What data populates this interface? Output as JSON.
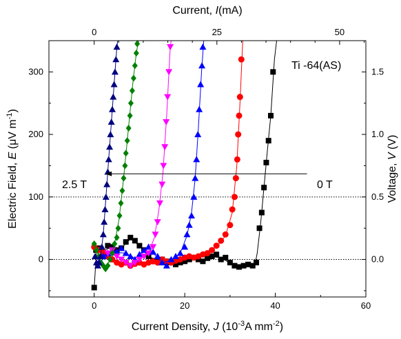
{
  "chart_data": {
    "type": "scatter",
    "title": "",
    "xlabel_bottom": {
      "prefix": "Current Density, ",
      "sym": "J",
      "mid": " (10",
      "sup1": "-3",
      "mid2": "A mm",
      "sup2": "-2",
      "end": ")"
    },
    "xlabel_top": {
      "prefix": "Current, ",
      "sym": "I",
      "end": "(mA)"
    },
    "ylabel_left": {
      "prefix": "Electric Field, ",
      "sym": "E",
      "mid": " (μV m",
      "sup": "-1",
      "end": ")"
    },
    "ylabel_right": {
      "prefix": "Voltage, ",
      "sym": "V",
      "end": " (V)"
    },
    "xlim": [
      -10,
      60
    ],
    "ylim": [
      -60,
      350
    ],
    "xticks": [
      "0",
      "20",
      "40",
      "60"
    ],
    "yticks": [
      "0",
      "100",
      "200",
      "300"
    ],
    "top_ticks": [
      "0",
      "25",
      "50"
    ],
    "right_ticks": [
      "0.0",
      "0.5",
      "1.0",
      "1.5"
    ],
    "sample_label": "Ti -64(AS)",
    "field_low_label": "0 T",
    "field_high_label": "2.5 T",
    "arrow": {
      "from": [
        47,
        137
      ],
      "to": [
        2.5,
        137
      ]
    },
    "reference_lines": [
      0,
      100
    ],
    "series": [
      {
        "marker": "square",
        "color": "#000000",
        "points": [
          [
            0,
            -45
          ],
          [
            0.4,
            15
          ],
          [
            1,
            18
          ],
          [
            2,
            10
          ],
          [
            3,
            22
          ],
          [
            4,
            20
          ],
          [
            5,
            15
          ],
          [
            6,
            18
          ],
          [
            7,
            28
          ],
          [
            8,
            35
          ],
          [
            9,
            30
          ],
          [
            10,
            22
          ],
          [
            11,
            15
          ],
          [
            12,
            5
          ],
          [
            13,
            -2
          ],
          [
            14,
            -3
          ],
          [
            15,
            0
          ],
          [
            16,
            -5
          ],
          [
            17,
            -3
          ],
          [
            18,
            -8
          ],
          [
            19,
            -5
          ],
          [
            20,
            -3
          ],
          [
            21,
            0
          ],
          [
            22,
            3
          ],
          [
            23,
            0
          ],
          [
            24,
            -3
          ],
          [
            25,
            2
          ],
          [
            26,
            5
          ],
          [
            27,
            8
          ],
          [
            28,
            0
          ],
          [
            29,
            3
          ],
          [
            30,
            -5
          ],
          [
            31,
            -10
          ],
          [
            32,
            -12
          ],
          [
            33,
            -10
          ],
          [
            34,
            -8
          ],
          [
            35,
            -10
          ],
          [
            35.8,
            -5
          ],
          [
            36.5,
            50
          ],
          [
            37,
            75
          ],
          [
            37.5,
            115
          ],
          [
            38,
            155
          ],
          [
            38.5,
            190
          ],
          [
            39,
            230
          ],
          [
            39.5,
            300
          ]
        ],
        "curve": [
          [
            0,
            -45
          ],
          [
            0.5,
            12
          ],
          [
            2,
            14
          ],
          [
            4,
            20
          ],
          [
            6,
            18
          ],
          [
            8,
            33
          ],
          [
            10,
            22
          ],
          [
            12,
            5
          ],
          [
            14,
            -2
          ],
          [
            16,
            -4
          ],
          [
            18,
            -6
          ],
          [
            20,
            -3
          ],
          [
            22,
            2
          ],
          [
            24,
            -1
          ],
          [
            26,
            4
          ],
          [
            28,
            3
          ],
          [
            30,
            -6
          ],
          [
            32,
            -12
          ],
          [
            34,
            -9
          ],
          [
            35.5,
            -8
          ],
          [
            36,
            10
          ],
          [
            36.8,
            60
          ],
          [
            37.5,
            115
          ],
          [
            38.2,
            170
          ],
          [
            39,
            230
          ],
          [
            39.8,
            320
          ],
          [
            40.3,
            350
          ]
        ]
      },
      {
        "marker": "circle",
        "color": "#ff0000",
        "points": [
          [
            0,
            20
          ],
          [
            1,
            15
          ],
          [
            2,
            12
          ],
          [
            3,
            5
          ],
          [
            4,
            0
          ],
          [
            5,
            -5
          ],
          [
            6,
            -8
          ],
          [
            7,
            -5
          ],
          [
            8,
            -10
          ],
          [
            9,
            -7
          ],
          [
            10,
            -5
          ],
          [
            11,
            -8
          ],
          [
            12,
            -5
          ],
          [
            13,
            -3
          ],
          [
            14,
            -5
          ],
          [
            15,
            0
          ],
          [
            16,
            -3
          ],
          [
            17,
            -5
          ],
          [
            18,
            -2
          ],
          [
            19,
            0
          ],
          [
            20,
            3
          ],
          [
            21,
            5
          ],
          [
            22,
            3
          ],
          [
            23,
            5
          ],
          [
            24,
            8
          ],
          [
            25,
            10
          ],
          [
            26,
            15
          ],
          [
            27,
            22
          ],
          [
            28,
            30
          ],
          [
            29,
            40
          ],
          [
            30,
            55
          ],
          [
            30.5,
            80
          ],
          [
            31,
            100
          ],
          [
            31.3,
            130
          ],
          [
            31.6,
            160
          ],
          [
            31.8,
            200
          ],
          [
            32,
            230
          ],
          [
            32.2,
            260
          ],
          [
            32.5,
            320
          ]
        ],
        "curve": [
          [
            0,
            20
          ],
          [
            4,
            0
          ],
          [
            8,
            -8
          ],
          [
            12,
            -6
          ],
          [
            16,
            -2
          ],
          [
            20,
            2
          ],
          [
            24,
            8
          ],
          [
            27,
            20
          ],
          [
            29,
            38
          ],
          [
            30.5,
            75
          ],
          [
            31.5,
            150
          ],
          [
            32.2,
            250
          ],
          [
            32.8,
            350
          ]
        ]
      },
      {
        "marker": "triangle-up",
        "color": "#0000ff",
        "points": [
          [
            1,
            -5
          ],
          [
            2,
            5
          ],
          [
            3,
            10
          ],
          [
            4,
            15
          ],
          [
            5,
            12
          ],
          [
            6,
            18
          ],
          [
            7,
            10
          ],
          [
            8,
            5
          ],
          [
            9,
            0
          ],
          [
            10,
            8
          ],
          [
            11,
            15
          ],
          [
            12,
            20
          ],
          [
            13,
            12
          ],
          [
            14,
            5
          ],
          [
            15,
            -5
          ],
          [
            16,
            -10
          ],
          [
            17,
            0
          ],
          [
            18,
            5
          ],
          [
            19,
            10
          ],
          [
            20,
            20
          ],
          [
            20.5,
            40
          ],
          [
            21,
            55
          ],
          [
            21.5,
            70
          ],
          [
            22,
            100
          ],
          [
            22.3,
            130
          ],
          [
            22.6,
            160
          ],
          [
            22.9,
            200
          ],
          [
            23.2,
            240
          ],
          [
            23.5,
            280
          ],
          [
            23.8,
            310
          ],
          [
            24,
            340
          ]
        ],
        "curve": [
          [
            1,
            -5
          ],
          [
            4,
            12
          ],
          [
            7,
            10
          ],
          [
            9,
            2
          ],
          [
            12,
            18
          ],
          [
            15,
            -5
          ],
          [
            17,
            -2
          ],
          [
            19,
            10
          ],
          [
            20.5,
            38
          ],
          [
            21.5,
            75
          ],
          [
            22.3,
            130
          ],
          [
            23,
            210
          ],
          [
            23.7,
            300
          ],
          [
            24.2,
            350
          ]
        ]
      },
      {
        "marker": "triangle-down",
        "color": "#ff00ff",
        "points": [
          [
            3,
            10
          ],
          [
            4,
            15
          ],
          [
            5,
            5
          ],
          [
            6,
            0
          ],
          [
            7,
            -5
          ],
          [
            8,
            -10
          ],
          [
            9,
            -5
          ],
          [
            10,
            0
          ],
          [
            11,
            5
          ],
          [
            12,
            10
          ],
          [
            13,
            20
          ],
          [
            13.5,
            40
          ],
          [
            14,
            60
          ],
          [
            14.5,
            90
          ],
          [
            15,
            120
          ],
          [
            15.3,
            150
          ],
          [
            15.6,
            180
          ],
          [
            15.9,
            220
          ],
          [
            16.2,
            260
          ],
          [
            16.5,
            300
          ],
          [
            16.8,
            340
          ]
        ],
        "curve": [
          [
            3,
            10
          ],
          [
            5,
            5
          ],
          [
            8,
            -9
          ],
          [
            10,
            0
          ],
          [
            12,
            10
          ],
          [
            13.3,
            35
          ],
          [
            14.3,
            80
          ],
          [
            15.2,
            140
          ],
          [
            16,
            230
          ],
          [
            16.8,
            340
          ],
          [
            17,
            350
          ]
        ]
      },
      {
        "marker": "diamond",
        "color": "#008000",
        "points": [
          [
            0,
            25
          ],
          [
            0.5,
            15
          ],
          [
            1,
            5
          ],
          [
            1.5,
            -5
          ],
          [
            2,
            -10
          ],
          [
            2.5,
            -15
          ],
          [
            3,
            -10
          ],
          [
            3.5,
            0
          ],
          [
            4,
            10
          ],
          [
            4.5,
            25
          ],
          [
            5,
            35
          ],
          [
            5.3,
            50
          ],
          [
            5.6,
            70
          ],
          [
            5.9,
            90
          ],
          [
            6.2,
            110
          ],
          [
            6.5,
            130
          ],
          [
            6.8,
            150
          ],
          [
            7,
            170
          ],
          [
            7.3,
            190
          ],
          [
            7.6,
            210
          ],
          [
            7.9,
            230
          ],
          [
            8.1,
            250
          ],
          [
            8.4,
            270
          ],
          [
            8.7,
            290
          ],
          [
            9,
            310
          ],
          [
            9.3,
            330
          ],
          [
            9.5,
            345
          ]
        ],
        "curve": [
          [
            0,
            25
          ],
          [
            1,
            5
          ],
          [
            2.5,
            -15
          ],
          [
            3.5,
            0
          ],
          [
            4.5,
            25
          ],
          [
            5.5,
            65
          ],
          [
            6.5,
            130
          ],
          [
            7.5,
            205
          ],
          [
            8.5,
            280
          ],
          [
            9.3,
            330
          ],
          [
            9.8,
            350
          ]
        ]
      },
      {
        "marker": "triangle-up",
        "color": "#000080",
        "points": [
          [
            0.2,
            5
          ],
          [
            0.5,
            -5
          ],
          [
            0.8,
            -10
          ],
          [
            1.1,
            -5
          ],
          [
            1.4,
            5
          ],
          [
            1.7,
            20
          ],
          [
            2,
            40
          ],
          [
            2.2,
            60
          ],
          [
            2.4,
            80
          ],
          [
            2.6,
            100
          ],
          [
            2.8,
            120
          ],
          [
            3,
            140
          ],
          [
            3.2,
            160
          ],
          [
            3.4,
            180
          ],
          [
            3.6,
            200
          ],
          [
            3.8,
            220
          ],
          [
            4,
            240
          ],
          [
            4.2,
            260
          ],
          [
            4.4,
            280
          ],
          [
            4.6,
            300
          ],
          [
            4.8,
            320
          ],
          [
            5,
            340
          ]
        ],
        "curve": [
          [
            0.2,
            5
          ],
          [
            0.8,
            -10
          ],
          [
            1.4,
            5
          ],
          [
            2,
            40
          ],
          [
            2.6,
            100
          ],
          [
            3.2,
            160
          ],
          [
            3.8,
            220
          ],
          [
            4.4,
            280
          ],
          [
            5,
            340
          ],
          [
            5.2,
            350
          ]
        ]
      }
    ]
  }
}
